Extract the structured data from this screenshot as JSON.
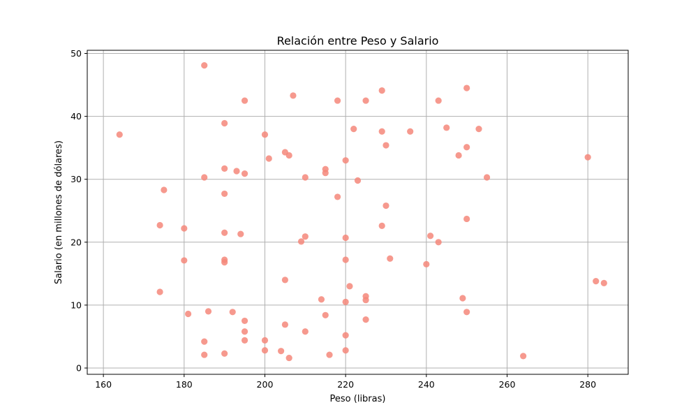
{
  "colors": {
    "point": "#f4877a",
    "grid": "#b0b0b0"
  },
  "chart_data": {
    "type": "scatter",
    "title": "Relación entre Peso y Salario",
    "xlabel": "Peso (libras)",
    "ylabel": "Salario (en millones de dólares)",
    "xlim": [
      156,
      290
    ],
    "ylim": [
      -1,
      50.5
    ],
    "xticks": [
      160,
      180,
      200,
      220,
      240,
      260,
      280
    ],
    "yticks": [
      0,
      10,
      20,
      30,
      40,
      50
    ],
    "xtick_labels": [
      "160",
      "180",
      "200",
      "220",
      "240",
      "260",
      "280"
    ],
    "ytick_labels": [
      "0",
      "10",
      "20",
      "30",
      "40",
      "50"
    ],
    "grid": true,
    "points": [
      [
        164,
        37.1
      ],
      [
        175,
        28.3
      ],
      [
        174,
        22.7
      ],
      [
        174,
        12.1
      ],
      [
        180,
        22.2
      ],
      [
        180,
        17.1
      ],
      [
        181,
        8.6
      ],
      [
        185,
        48.1
      ],
      [
        185,
        30.3
      ],
      [
        186,
        9.0
      ],
      [
        185,
        4.2
      ],
      [
        185,
        2.1
      ],
      [
        190,
        38.9
      ],
      [
        190,
        31.7
      ],
      [
        190,
        27.7
      ],
      [
        190,
        21.5
      ],
      [
        190,
        17.2
      ],
      [
        190,
        16.8
      ],
      [
        190,
        2.3
      ],
      [
        192,
        8.9
      ],
      [
        193,
        31.3
      ],
      [
        194,
        21.3
      ],
      [
        195,
        42.5
      ],
      [
        195,
        30.9
      ],
      [
        195,
        7.5
      ],
      [
        195,
        5.8
      ],
      [
        195,
        4.4
      ],
      [
        200,
        37.1
      ],
      [
        200,
        4.4
      ],
      [
        200,
        2.8
      ],
      [
        201,
        33.3
      ],
      [
        204,
        2.7
      ],
      [
        205,
        34.3
      ],
      [
        205,
        14.0
      ],
      [
        205,
        6.9
      ],
      [
        206,
        33.8
      ],
      [
        206,
        1.6
      ],
      [
        207,
        43.3
      ],
      [
        209,
        20.1
      ],
      [
        210,
        30.3
      ],
      [
        210,
        20.9
      ],
      [
        210,
        5.8
      ],
      [
        214,
        10.9
      ],
      [
        215,
        31.6
      ],
      [
        215,
        31.0
      ],
      [
        215,
        8.4
      ],
      [
        216,
        2.1
      ],
      [
        218,
        42.5
      ],
      [
        218,
        27.2
      ],
      [
        220,
        33.0
      ],
      [
        220,
        20.7
      ],
      [
        220,
        17.2
      ],
      [
        220,
        10.5
      ],
      [
        220,
        5.2
      ],
      [
        220,
        2.8
      ],
      [
        221,
        13.0
      ],
      [
        222,
        38.0
      ],
      [
        223,
        29.8
      ],
      [
        225,
        42.5
      ],
      [
        225,
        11.4
      ],
      [
        225,
        10.8
      ],
      [
        225,
        7.7
      ],
      [
        229,
        44.1
      ],
      [
        229,
        37.6
      ],
      [
        229,
        22.6
      ],
      [
        230,
        35.4
      ],
      [
        230,
        25.8
      ],
      [
        231,
        17.4
      ],
      [
        236,
        37.6
      ],
      [
        240,
        16.5
      ],
      [
        241,
        21.0
      ],
      [
        243,
        42.5
      ],
      [
        243,
        20.0
      ],
      [
        245,
        38.2
      ],
      [
        248,
        33.8
      ],
      [
        249,
        11.1
      ],
      [
        250,
        44.5
      ],
      [
        250,
        35.1
      ],
      [
        250,
        23.7
      ],
      [
        250,
        8.9
      ],
      [
        253,
        38.0
      ],
      [
        255,
        30.3
      ],
      [
        264,
        1.9
      ],
      [
        280,
        33.5
      ],
      [
        282,
        13.8
      ],
      [
        284,
        13.5
      ]
    ]
  }
}
